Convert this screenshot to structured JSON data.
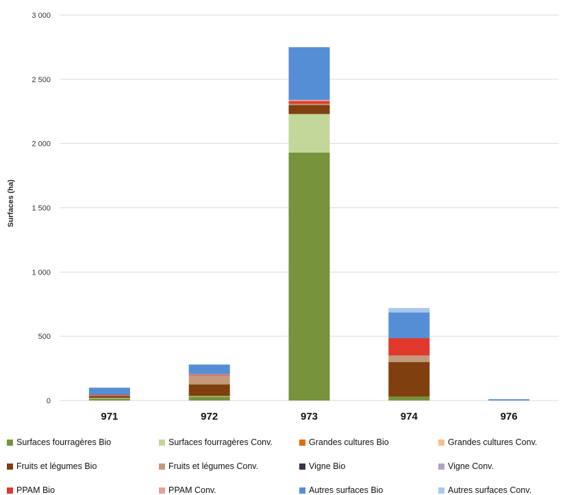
{
  "chart_data": {
    "type": "bar",
    "stacked": true,
    "ylabel": "Surfaces (ha)",
    "ylim": [
      0,
      3000
    ],
    "yticks": [
      0,
      500,
      1000,
      1500,
      2000,
      2500,
      3000
    ],
    "ytick_labels": [
      "0",
      "500",
      "1 000",
      "1 500",
      "2 000",
      "2 500",
      "3 000"
    ],
    "grid": true,
    "legend_position": "bottom",
    "categories": [
      "971",
      "972",
      "973",
      "974",
      "976"
    ],
    "series": [
      {
        "name": "Surfaces fourragères Bio",
        "color": "#77933c",
        "values": [
          15,
          30,
          1930,
          30,
          0
        ]
      },
      {
        "name": "Surfaces fourragères Conv.",
        "color": "#c4d79b",
        "values": [
          5,
          5,
          300,
          0,
          0
        ]
      },
      {
        "name": "Grandes cultures Bio",
        "color": "#e46c0a",
        "values": [
          0,
          0,
          0,
          0,
          0
        ]
      },
      {
        "name": "Grandes cultures Conv.",
        "color": "#fac090",
        "values": [
          0,
          0,
          0,
          0,
          0
        ]
      },
      {
        "name": "Fruits et légumes Bio",
        "color": "#7f3f0f",
        "values": [
          15,
          90,
          70,
          270,
          0
        ]
      },
      {
        "name": "Fruits et légumes Conv.",
        "color": "#c49a7a",
        "values": [
          5,
          70,
          10,
          50,
          0
        ]
      },
      {
        "name": "Vigne Bio",
        "color": "#403152",
        "values": [
          0,
          0,
          0,
          0,
          0
        ]
      },
      {
        "name": "Vigne Conv.",
        "color": "#b3a2c7",
        "values": [
          0,
          0,
          0,
          0,
          0
        ]
      },
      {
        "name": "PPAM Bio",
        "color": "#e0392b",
        "values": [
          5,
          5,
          20,
          135,
          0
        ]
      },
      {
        "name": "PPAM Conv.",
        "color": "#e6a19a",
        "values": [
          0,
          5,
          10,
          0,
          0
        ]
      },
      {
        "name": "Autres surfaces Bio",
        "color": "#558ed5",
        "values": [
          55,
          75,
          410,
          200,
          10
        ]
      },
      {
        "name": "Autres surfaces Conv.",
        "color": "#a9c8ee",
        "values": [
          0,
          0,
          0,
          35,
          0
        ]
      }
    ]
  }
}
